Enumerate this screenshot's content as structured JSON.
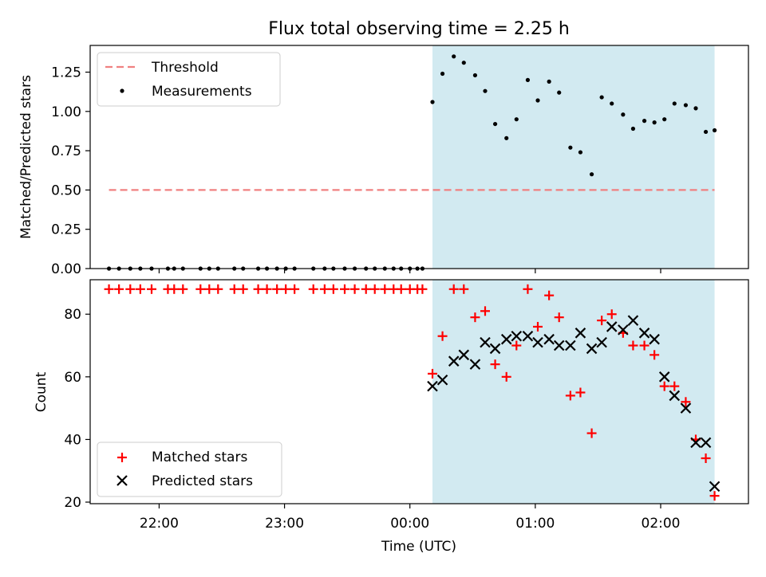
{
  "chart_data": {
    "title": "Flux total observing time = 2.25 h",
    "xlabel": "Time (UTC)",
    "x_ticks": [
      "22:00",
      "23:00",
      "00:00",
      "01:00",
      "02:00"
    ],
    "x_tick_hours": [
      22.0,
      23.0,
      24.0,
      25.0,
      26.0
    ],
    "xlim_hours": [
      21.45,
      26.7
    ],
    "observing_window_hours": [
      24.18,
      26.43
    ],
    "window_color": "#add8e6",
    "top": {
      "type": "scatter",
      "ylabel": "Matched/Predicted stars",
      "ylim": [
        0,
        1.42
      ],
      "y_ticks": [
        "0.00",
        "0.25",
        "0.50",
        "0.75",
        "1.00",
        "1.25"
      ],
      "y_tick_values": [
        0.0,
        0.25,
        0.5,
        0.75,
        1.0,
        1.25
      ],
      "threshold": {
        "name": "Threshold",
        "value": 0.5,
        "x_range_hours": [
          21.6,
          26.43
        ],
        "color": "#f08080"
      },
      "measurements_name": "Measurements",
      "measurements": [
        [
          21.6,
          0
        ],
        [
          21.68,
          0
        ],
        [
          21.77,
          0
        ],
        [
          21.85,
          0
        ],
        [
          21.94,
          0
        ],
        [
          22.07,
          0
        ],
        [
          22.12,
          0
        ],
        [
          22.19,
          0
        ],
        [
          22.33,
          0
        ],
        [
          22.4,
          0
        ],
        [
          22.47,
          0
        ],
        [
          22.6,
          0
        ],
        [
          22.67,
          0
        ],
        [
          22.79,
          0
        ],
        [
          22.86,
          0
        ],
        [
          22.94,
          0
        ],
        [
          23.01,
          0
        ],
        [
          23.08,
          0
        ],
        [
          23.23,
          0
        ],
        [
          23.32,
          0
        ],
        [
          23.39,
          0
        ],
        [
          23.48,
          0
        ],
        [
          23.56,
          0
        ],
        [
          23.65,
          0
        ],
        [
          23.72,
          0
        ],
        [
          23.8,
          0
        ],
        [
          23.87,
          0
        ],
        [
          23.93,
          0
        ],
        [
          24.0,
          0
        ],
        [
          24.06,
          0
        ],
        [
          24.1,
          0
        ],
        [
          24.18,
          1.06
        ],
        [
          24.26,
          1.24
        ],
        [
          24.35,
          1.35
        ],
        [
          24.43,
          1.31
        ],
        [
          24.52,
          1.23
        ],
        [
          24.6,
          1.13
        ],
        [
          24.68,
          0.92
        ],
        [
          24.77,
          0.83
        ],
        [
          24.85,
          0.95
        ],
        [
          24.94,
          1.2
        ],
        [
          25.02,
          1.07
        ],
        [
          25.11,
          1.19
        ],
        [
          25.19,
          1.12
        ],
        [
          25.28,
          0.77
        ],
        [
          25.36,
          0.74
        ],
        [
          25.45,
          0.6
        ],
        [
          25.53,
          1.09
        ],
        [
          25.61,
          1.05
        ],
        [
          25.7,
          0.98
        ],
        [
          25.78,
          0.89
        ],
        [
          25.87,
          0.94
        ],
        [
          25.95,
          0.93
        ],
        [
          26.03,
          0.95
        ],
        [
          26.11,
          1.05
        ],
        [
          26.2,
          1.04
        ],
        [
          26.28,
          1.02
        ],
        [
          26.36,
          0.87
        ],
        [
          26.43,
          0.88
        ]
      ]
    },
    "bottom": {
      "type": "scatter",
      "ylabel": "Count",
      "ylim": [
        19.5,
        91
      ],
      "y_ticks": [
        "20",
        "40",
        "60",
        "80"
      ],
      "y_tick_values": [
        20,
        40,
        60,
        80
      ],
      "series": [
        {
          "name": "Matched stars",
          "marker": "+",
          "color": "#ff0000",
          "points": [
            [
              21.6,
              88
            ],
            [
              21.68,
              88
            ],
            [
              21.77,
              88
            ],
            [
              21.85,
              88
            ],
            [
              21.94,
              88
            ],
            [
              22.07,
              88
            ],
            [
              22.12,
              88
            ],
            [
              22.19,
              88
            ],
            [
              22.33,
              88
            ],
            [
              22.4,
              88
            ],
            [
              22.47,
              88
            ],
            [
              22.6,
              88
            ],
            [
              22.67,
              88
            ],
            [
              22.79,
              88
            ],
            [
              22.86,
              88
            ],
            [
              22.94,
              88
            ],
            [
              23.01,
              88
            ],
            [
              23.08,
              88
            ],
            [
              23.23,
              88
            ],
            [
              23.32,
              88
            ],
            [
              23.39,
              88
            ],
            [
              23.48,
              88
            ],
            [
              23.56,
              88
            ],
            [
              23.65,
              88
            ],
            [
              23.72,
              88
            ],
            [
              23.8,
              88
            ],
            [
              23.87,
              88
            ],
            [
              23.93,
              88
            ],
            [
              24.0,
              88
            ],
            [
              24.06,
              88
            ],
            [
              24.1,
              88
            ],
            [
              24.18,
              61
            ],
            [
              24.26,
              73
            ],
            [
              24.35,
              88
            ],
            [
              24.43,
              88
            ],
            [
              24.52,
              79
            ],
            [
              24.6,
              81
            ],
            [
              24.68,
              64
            ],
            [
              24.77,
              60
            ],
            [
              24.85,
              70
            ],
            [
              24.94,
              88
            ],
            [
              25.02,
              76
            ],
            [
              25.11,
              86
            ],
            [
              25.19,
              79
            ],
            [
              25.28,
              54
            ],
            [
              25.36,
              55
            ],
            [
              25.45,
              42
            ],
            [
              25.53,
              78
            ],
            [
              25.61,
              80
            ],
            [
              25.7,
              74
            ],
            [
              25.78,
              70
            ],
            [
              25.87,
              70
            ],
            [
              25.95,
              67
            ],
            [
              26.03,
              57
            ],
            [
              26.11,
              57
            ],
            [
              26.2,
              52
            ],
            [
              26.28,
              40
            ],
            [
              26.36,
              34
            ],
            [
              26.43,
              22
            ]
          ]
        },
        {
          "name": "Predicted stars",
          "marker": "x",
          "color": "#000000",
          "points": [
            [
              24.18,
              57
            ],
            [
              24.26,
              59
            ],
            [
              24.35,
              65
            ],
            [
              24.43,
              67
            ],
            [
              24.52,
              64
            ],
            [
              24.6,
              71
            ],
            [
              24.68,
              69
            ],
            [
              24.77,
              72
            ],
            [
              24.85,
              73
            ],
            [
              24.94,
              73
            ],
            [
              25.02,
              71
            ],
            [
              25.11,
              72
            ],
            [
              25.19,
              70
            ],
            [
              25.28,
              70
            ],
            [
              25.36,
              74
            ],
            [
              25.45,
              69
            ],
            [
              25.53,
              71
            ],
            [
              25.61,
              76
            ],
            [
              25.7,
              75
            ],
            [
              25.78,
              78
            ],
            [
              25.87,
              74
            ],
            [
              25.95,
              72
            ],
            [
              26.03,
              60
            ],
            [
              26.11,
              54
            ],
            [
              26.2,
              50
            ],
            [
              26.28,
              39
            ],
            [
              26.36,
              39
            ],
            [
              26.43,
              25
            ]
          ]
        }
      ]
    }
  }
}
